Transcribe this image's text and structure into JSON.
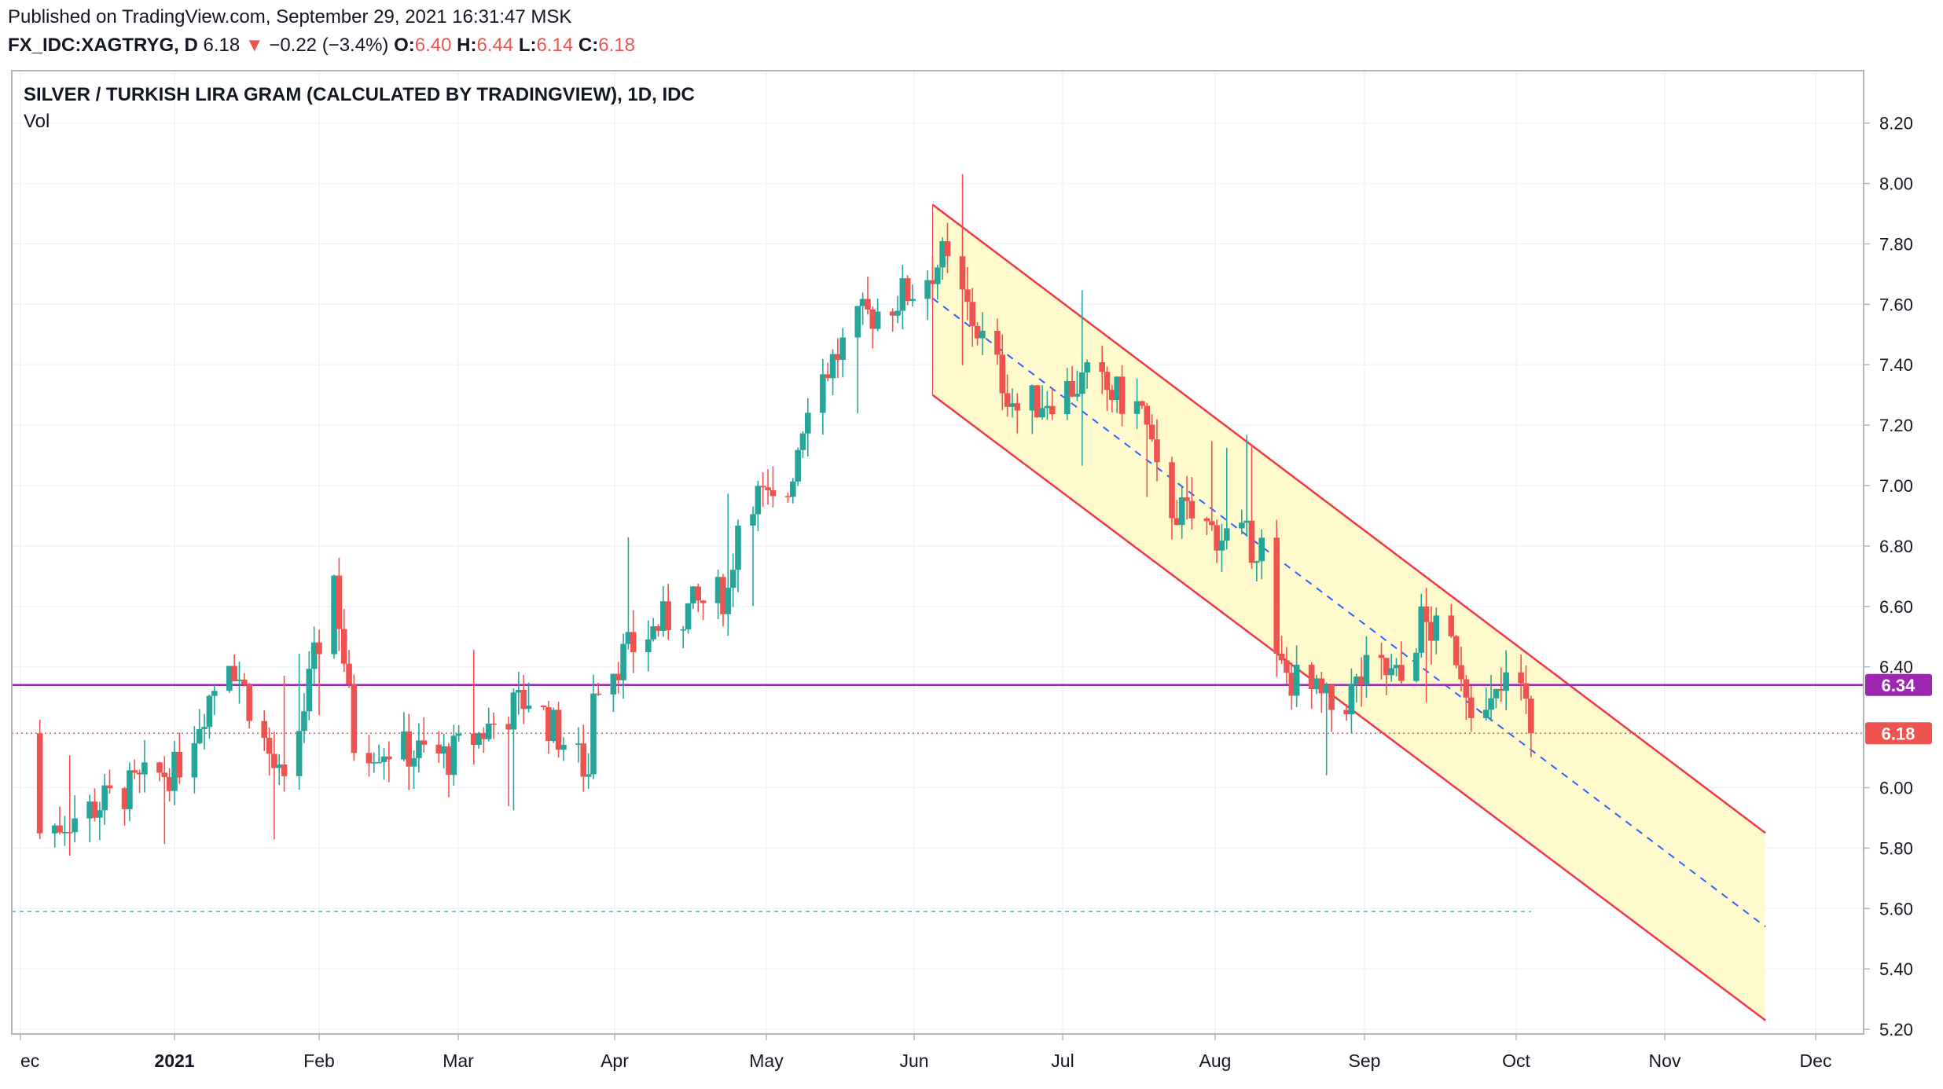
{
  "header": {
    "published": "Published on TradingView.com, September 29, 2021 16:31:47 MSK",
    "symbol": "FX_IDC:XAGTRYG, D",
    "last": "6.18",
    "arrow": "▼",
    "change": "−0.22 (−3.4%)",
    "o_label": "O:",
    "o_value": "6.40",
    "h_label": "H:",
    "h_value": "6.44",
    "l_label": "L:",
    "l_value": "6.14",
    "c_label": "C:",
    "c_value": "6.18"
  },
  "colors": {
    "up": "#26a69a",
    "down": "#ef5350",
    "channel_line": "#f23645",
    "channel_fill": "#fff9c4",
    "median_line": "#2962ff",
    "purple_line": "#9c27b0",
    "grid": "#f0f3fa"
  },
  "chart_data": {
    "type": "candlestick",
    "title": "SILVER / TURKISH LIRA GRAM (CALCULATED BY TRADINGVIEW), 1D, IDC",
    "subtitle": "Vol",
    "y_ticks": [
      "8.20",
      "8.00",
      "7.80",
      "7.60",
      "7.40",
      "7.20",
      "7.00",
      "6.80",
      "6.60",
      "6.40",
      "6.00",
      "5.80",
      "5.60",
      "5.40",
      "5.20"
    ],
    "x_ticks": [
      "ec",
      "2021",
      "Feb",
      "Mar",
      "Apr",
      "May",
      "Jun",
      "Jul",
      "Aug",
      "Sep",
      "Oct",
      "Nov",
      "Dec"
    ],
    "ylim": [
      5.2,
      8.2
    ],
    "price_labels": {
      "horizontal_level": "6.34",
      "last_price": "6.18"
    },
    "horizontal_level": 6.34,
    "last_price": 6.18,
    "dotted_level": 5.59,
    "anchors": [
      {
        "date": "2020-12-31",
        "price": 6.05
      },
      {
        "date": "2021-01-11",
        "price": 6.45
      },
      {
        "date": "2021-01-22",
        "price": 5.98
      },
      {
        "date": "2021-02-01",
        "price": 6.7
      },
      {
        "date": "2021-02-05",
        "price": 6.15
      },
      {
        "date": "2021-02-24",
        "price": 6.1
      },
      {
        "date": "2021-03-12",
        "price": 6.3
      },
      {
        "date": "2021-03-24",
        "price": 6.05
      },
      {
        "date": "2021-03-25",
        "price": 6.35
      },
      {
        "date": "2021-04-08",
        "price": 6.55
      },
      {
        "date": "2021-04-21",
        "price": 6.65
      },
      {
        "date": "2021-04-24",
        "price": 7.0
      },
      {
        "date": "2021-05-02",
        "price": 6.9
      },
      {
        "date": "2021-05-07",
        "price": 7.3
      },
      {
        "date": "2021-05-18",
        "price": 7.55
      },
      {
        "date": "2021-05-28",
        "price": 7.65
      },
      {
        "date": "2021-06-03",
        "price": 7.75
      },
      {
        "date": "2021-06-12",
        "price": 7.45
      },
      {
        "date": "2021-06-18",
        "price": 7.25
      },
      {
        "date": "2021-07-02",
        "price": 7.35
      },
      {
        "date": "2021-07-13",
        "price": 7.25
      },
      {
        "date": "2021-07-17",
        "price": 6.95
      },
      {
        "date": "2021-07-27",
        "price": 6.85
      },
      {
        "date": "2021-08-06",
        "price": 6.8
      },
      {
        "date": "2021-08-09",
        "price": 6.4
      },
      {
        "date": "2021-08-21",
        "price": 6.25
      },
      {
        "date": "2021-08-28",
        "price": 6.4
      },
      {
        "date": "2021-09-03",
        "price": 6.35
      },
      {
        "date": "2021-09-07",
        "price": 6.55
      },
      {
        "date": "2021-09-14",
        "price": 6.45
      },
      {
        "date": "2021-09-19",
        "price": 6.2
      },
      {
        "date": "2021-09-26",
        "price": 6.4
      },
      {
        "date": "2021-09-29",
        "price": 6.18
      }
    ],
    "channel": {
      "upper": {
        "start": {
          "date": "2021-06-01",
          "price": 7.93
        },
        "end": {
          "date": "2021-11-15",
          "price": 5.85
        }
      },
      "lower": {
        "start": {
          "date": "2021-06-01",
          "price": 7.3
        },
        "end": {
          "date": "2021-11-15",
          "price": 5.23
        }
      },
      "median": {
        "start": {
          "date": "2021-06-01",
          "price": 7.62
        },
        "end": {
          "date": "2021-11-15",
          "price": 5.54
        }
      }
    }
  }
}
